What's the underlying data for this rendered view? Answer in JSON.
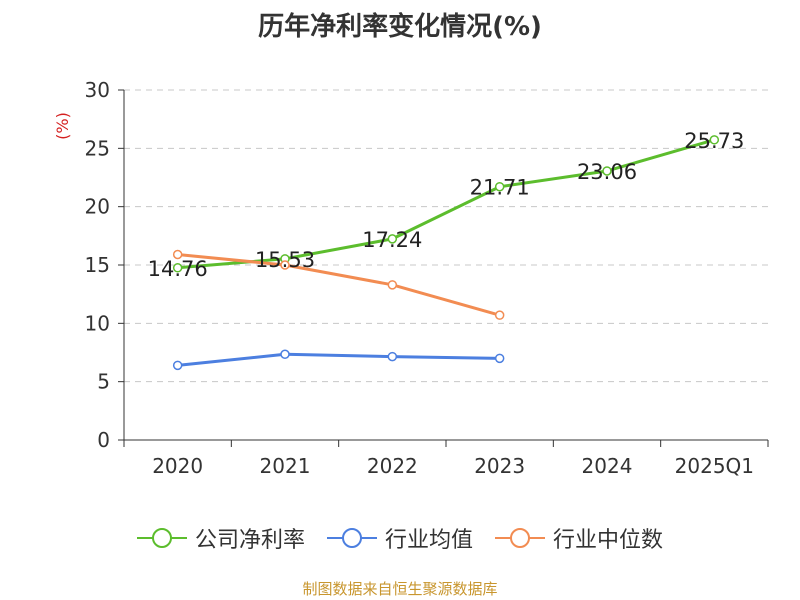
{
  "chart_data": {
    "type": "line",
    "title": "历年净利率变化情况(%)",
    "ylabel": "(%)",
    "xlabel": "",
    "categories": [
      "2020",
      "2021",
      "2022",
      "2023",
      "2024",
      "2025Q1"
    ],
    "ylim": [
      0,
      30
    ],
    "yticks": [
      0,
      5,
      10,
      15,
      20,
      25,
      30
    ],
    "grid": "horizontal-dashed",
    "legend_position": "bottom",
    "series": [
      {
        "name": "公司净利率",
        "color": "#5cbd2d",
        "values": [
          14.76,
          15.53,
          17.24,
          21.71,
          23.06,
          25.73
        ],
        "show_labels": true
      },
      {
        "name": "行业均值",
        "color": "#4c7fe0",
        "values": [
          6.4,
          7.35,
          7.15,
          7.0,
          null,
          null
        ],
        "show_labels": false
      },
      {
        "name": "行业中位数",
        "color": "#f28c52",
        "values": [
          15.9,
          15.0,
          13.3,
          10.7,
          null,
          null
        ],
        "show_labels": false
      }
    ]
  },
  "source_note": "制图数据来自恒生聚源数据库"
}
